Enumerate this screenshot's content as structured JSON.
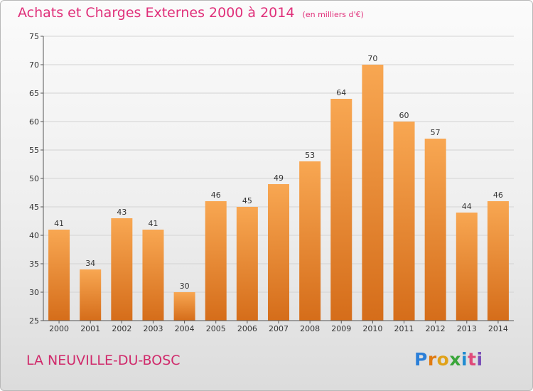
{
  "title": "Achats et Charges Externes 2000 à 2014",
  "unit": "(en milliers d'€)",
  "place": "LA NEUVILLE-DU-BOSC",
  "logo": {
    "letters": [
      "P",
      "r",
      "o",
      "x",
      "i",
      "t",
      "i"
    ],
    "colors": [
      "#2b7fd8",
      "#e07a10",
      "#e0a21a",
      "#3aa63a",
      "#1f8bd0",
      "#e04a7a",
      "#7a4fb8"
    ]
  },
  "chart_data": {
    "type": "bar",
    "categories": [
      "2000",
      "2001",
      "2002",
      "2003",
      "2004",
      "2005",
      "2006",
      "2007",
      "2008",
      "2009",
      "2010",
      "2011",
      "2012",
      "2013",
      "2014"
    ],
    "values": [
      41,
      34,
      43,
      41,
      30,
      46,
      45,
      49,
      53,
      64,
      70,
      60,
      57,
      44,
      46
    ],
    "ylim": [
      25,
      75
    ],
    "yticks": [
      25,
      30,
      35,
      40,
      45,
      50,
      55,
      60,
      65,
      70,
      75
    ],
    "bar_color_light": "#f8a752",
    "bar_color_dark": "#d56d1a",
    "grid": true
  }
}
